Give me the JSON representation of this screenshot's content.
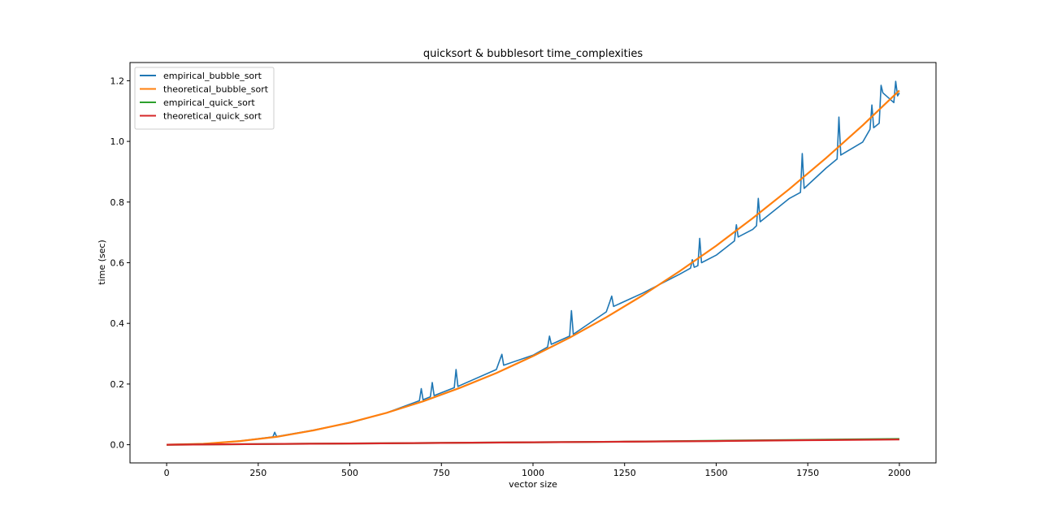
{
  "chart_data": {
    "type": "line",
    "title": "quicksort & bubblesort time_complexities",
    "xlabel": "vector size",
    "ylabel": "time (sec)",
    "xlim": [
      -100,
      2100
    ],
    "ylim": [
      -0.06,
      1.26
    ],
    "xticks": [
      0,
      250,
      500,
      750,
      1000,
      1250,
      1500,
      1750,
      2000
    ],
    "yticks": [
      0.0,
      0.2,
      0.4,
      0.6,
      0.8,
      1.0,
      1.2
    ],
    "xtick_labels": [
      "0",
      "250",
      "500",
      "750",
      "1000",
      "1250",
      "1500",
      "1750",
      "2000"
    ],
    "ytick_labels": [
      "0.0",
      "0.2",
      "0.4",
      "0.6",
      "0.8",
      "1.0",
      "1.2"
    ],
    "grid": false,
    "legend_position": "top-left",
    "series": [
      {
        "name": "empirical_bubble_sort",
        "color": "#1f77b4",
        "x": [
          0,
          100,
          200,
          290,
          295,
          300,
          400,
          500,
          600,
          690,
          695,
          700,
          720,
          725,
          730,
          785,
          790,
          795,
          800,
          900,
          915,
          920,
          1000,
          1040,
          1045,
          1050,
          1100,
          1105,
          1110,
          1200,
          1210,
          1215,
          1220,
          1300,
          1400,
          1430,
          1435,
          1440,
          1450,
          1455,
          1460,
          1500,
          1550,
          1555,
          1560,
          1600,
          1610,
          1615,
          1620,
          1700,
          1730,
          1735,
          1740,
          1800,
          1830,
          1835,
          1840,
          1900,
          1920,
          1925,
          1930,
          1945,
          1950,
          1955,
          1985,
          1990,
          1995,
          2000
        ],
        "y": [
          0.0,
          0.003,
          0.012,
          0.026,
          0.041,
          0.027,
          0.048,
          0.072,
          0.105,
          0.145,
          0.185,
          0.148,
          0.158,
          0.205,
          0.162,
          0.188,
          0.248,
          0.192,
          0.195,
          0.248,
          0.298,
          0.262,
          0.295,
          0.322,
          0.358,
          0.331,
          0.358,
          0.442,
          0.364,
          0.438,
          0.472,
          0.49,
          0.456,
          0.5,
          0.562,
          0.582,
          0.61,
          0.585,
          0.59,
          0.68,
          0.6,
          0.625,
          0.672,
          0.725,
          0.685,
          0.71,
          0.722,
          0.812,
          0.735,
          0.812,
          0.832,
          0.96,
          0.845,
          0.912,
          0.942,
          1.08,
          0.955,
          0.998,
          1.04,
          1.12,
          1.045,
          1.06,
          1.185,
          1.16,
          1.128,
          1.198,
          1.15,
          1.16
        ]
      },
      {
        "name": "theoretical_bubble_sort",
        "color": "#ff7f0e",
        "x": [
          0,
          100,
          200,
          300,
          400,
          500,
          600,
          700,
          800,
          900,
          1000,
          1100,
          1200,
          1300,
          1400,
          1500,
          1600,
          1700,
          1800,
          1900,
          2000
        ],
        "y": [
          0.0,
          0.003,
          0.012,
          0.026,
          0.047,
          0.073,
          0.105,
          0.143,
          0.187,
          0.236,
          0.292,
          0.353,
          0.42,
          0.493,
          0.572,
          0.656,
          0.747,
          0.843,
          0.945,
          1.053,
          1.168
        ]
      },
      {
        "name": "empirical_quick_sort",
        "color": "#2ca02c",
        "x": [
          0,
          250,
          500,
          750,
          1000,
          1250,
          1500,
          1750,
          2000
        ],
        "y": [
          0.0,
          0.002,
          0.004,
          0.006,
          0.008,
          0.01,
          0.013,
          0.016,
          0.019
        ]
      },
      {
        "name": "theoretical_quick_sort",
        "color": "#d62728",
        "x": [
          0,
          250,
          500,
          750,
          1000,
          1250,
          1500,
          1750,
          2000
        ],
        "y": [
          0.0,
          0.002,
          0.004,
          0.006,
          0.008,
          0.01,
          0.012,
          0.015,
          0.017
        ]
      }
    ]
  }
}
